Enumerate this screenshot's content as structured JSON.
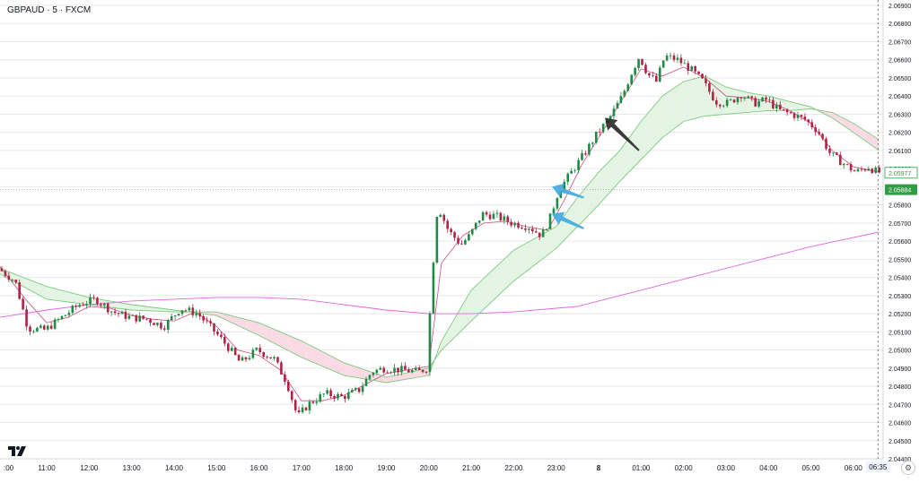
{
  "header": {
    "symbol": "GBPAUD · 5 · FXCM"
  },
  "colors": {
    "grid": "#e6e8ec",
    "up_candle": "#1e8a44",
    "down_candle": "#b22245",
    "fill_bull": "#e3f4e3",
    "fill_bear": "#f9d9e4",
    "band_line": "#7fc97f",
    "slow_ma": "#e066e0",
    "fast_ma": "#cc4f7a",
    "price_tag_bg": "#2e9e46",
    "arrow_dark": "#2b2b2b",
    "arrow_blue": "#40a9de"
  },
  "icons": {
    "logo": "tradingview-logo-icon",
    "settings": "gear-icon"
  },
  "chart_data": {
    "type": "candlestick",
    "symbol": "GBPAUD",
    "timeframe": "5",
    "source": "FXCM",
    "ylim": [
      2.044,
      2.069
    ],
    "y_ticks": [
      "2.06900",
      "2.06800",
      "2.06700",
      "2.06600",
      "2.06500",
      "2.06400",
      "2.06300",
      "2.06200",
      "2.06100",
      "2.06000",
      "2.05900",
      "2.05800",
      "2.05700",
      "2.05600",
      "2.05500",
      "2.05400",
      "2.05300",
      "2.05200",
      "2.05100",
      "2.05000",
      "2.04900",
      "2.04800",
      "2.04700",
      "2.04600",
      "2.04500",
      "2.04400"
    ],
    "x_ticks": [
      {
        "t": 10.0,
        "label": ":00"
      },
      {
        "t": 11.0,
        "label": "11:00"
      },
      {
        "t": 12.0,
        "label": "12:00"
      },
      {
        "t": 13.0,
        "label": "13:00"
      },
      {
        "t": 14.0,
        "label": "14:00"
      },
      {
        "t": 15.0,
        "label": "15:00"
      },
      {
        "t": 16.0,
        "label": "16:00"
      },
      {
        "t": 17.0,
        "label": "17:00"
      },
      {
        "t": 18.0,
        "label": "18:00"
      },
      {
        "t": 19.0,
        "label": "19:00"
      },
      {
        "t": 20.0,
        "label": "20:00"
      },
      {
        "t": 21.0,
        "label": "21:00"
      },
      {
        "t": 22.0,
        "label": "22:00"
      },
      {
        "t": 23.0,
        "label": "23:00"
      },
      {
        "t": 24.0,
        "label": "8"
      },
      {
        "t": 25.0,
        "label": "01:00"
      },
      {
        "t": 26.0,
        "label": "02:00"
      },
      {
        "t": 27.0,
        "label": "03:00"
      },
      {
        "t": 28.0,
        "label": "04:00"
      },
      {
        "t": 29.0,
        "label": "05:00"
      },
      {
        "t": 30.0,
        "label": "06:00"
      }
    ],
    "crosshair": {
      "t": 30.58,
      "label": "06:35"
    },
    "current_price": {
      "value": 2.05977,
      "label": "2.05977"
    },
    "marked_price": {
      "value": 2.05884,
      "label": "2.05884"
    },
    "close_path": [
      [
        9.9,
        2.0545
      ],
      [
        10.3,
        2.0538
      ],
      [
        10.6,
        2.0512
      ],
      [
        11.0,
        2.0511
      ],
      [
        11.4,
        2.0518
      ],
      [
        11.8,
        2.0525
      ],
      [
        12.2,
        2.0528
      ],
      [
        12.6,
        2.0521
      ],
      [
        13.0,
        2.0518
      ],
      [
        13.4,
        2.0517
      ],
      [
        13.8,
        2.0513
      ],
      [
        14.2,
        2.0523
      ],
      [
        14.6,
        2.052
      ],
      [
        15.0,
        2.051
      ],
      [
        15.3,
        2.0502
      ],
      [
        15.6,
        2.0493
      ],
      [
        16.0,
        2.05
      ],
      [
        16.4,
        2.0495
      ],
      [
        16.7,
        2.0482
      ],
      [
        16.95,
        2.0463
      ],
      [
        17.2,
        2.047
      ],
      [
        17.6,
        2.0476
      ],
      [
        18.0,
        2.0474
      ],
      [
        18.4,
        2.0478
      ],
      [
        18.7,
        2.0488
      ],
      [
        19.0,
        2.049
      ],
      [
        19.4,
        2.0489
      ],
      [
        19.8,
        2.0488
      ],
      [
        20.0,
        2.049
      ],
      [
        20.1,
        2.0535
      ],
      [
        20.25,
        2.058
      ],
      [
        20.5,
        2.0566
      ],
      [
        20.8,
        2.0558
      ],
      [
        21.0,
        2.0563
      ],
      [
        21.3,
        2.0575
      ],
      [
        21.6,
        2.0574
      ],
      [
        22.0,
        2.057
      ],
      [
        22.4,
        2.0568
      ],
      [
        22.7,
        2.0563
      ],
      [
        22.9,
        2.0573
      ],
      [
        23.1,
        2.0588
      ],
      [
        23.4,
        2.0598
      ],
      [
        23.7,
        2.0608
      ],
      [
        24.0,
        2.0619
      ],
      [
        24.3,
        2.0628
      ],
      [
        24.6,
        2.064
      ],
      [
        24.8,
        2.0652
      ],
      [
        25.0,
        2.0662
      ],
      [
        25.2,
        2.0652
      ],
      [
        25.4,
        2.0648
      ],
      [
        25.6,
        2.0662
      ],
      [
        25.9,
        2.066
      ],
      [
        26.2,
        2.0655
      ],
      [
        26.5,
        2.0648
      ],
      [
        26.8,
        2.0637
      ],
      [
        27.1,
        2.0636
      ],
      [
        27.4,
        2.0641
      ],
      [
        27.7,
        2.0636
      ],
      [
        28.0,
        2.0638
      ],
      [
        28.3,
        2.0632
      ],
      [
        28.6,
        2.063
      ],
      [
        28.9,
        2.0627
      ],
      [
        29.2,
        2.0621
      ],
      [
        29.5,
        2.0608
      ],
      [
        29.8,
        2.0603
      ],
      [
        30.1,
        2.0598
      ],
      [
        30.4,
        2.0601
      ],
      [
        30.6,
        2.0598
      ]
    ],
    "series": [
      {
        "name": "",
        "role": "fast",
        "color": "#cc4f7a",
        "points": [
          [
            9.9,
            2.0546
          ],
          [
            10.5,
            2.0528
          ],
          [
            11.0,
            2.0515
          ],
          [
            11.5,
            2.0518
          ],
          [
            12.0,
            2.0524
          ],
          [
            12.5,
            2.0523
          ],
          [
            13.0,
            2.0519
          ],
          [
            13.5,
            2.0517
          ],
          [
            14.0,
            2.0516
          ],
          [
            14.5,
            2.0521
          ],
          [
            15.0,
            2.0513
          ],
          [
            15.5,
            2.05
          ],
          [
            16.0,
            2.0497
          ],
          [
            16.5,
            2.0489
          ],
          [
            17.0,
            2.0472
          ],
          [
            17.5,
            2.0472
          ],
          [
            18.0,
            2.0475
          ],
          [
            18.5,
            2.0481
          ],
          [
            19.0,
            2.0487
          ],
          [
            19.5,
            2.0489
          ],
          [
            20.0,
            2.0491
          ],
          [
            20.3,
            2.0548
          ],
          [
            20.8,
            2.0563
          ],
          [
            21.3,
            2.057
          ],
          [
            21.8,
            2.0571
          ],
          [
            22.3,
            2.0568
          ],
          [
            22.8,
            2.0566
          ],
          [
            23.2,
            2.0583
          ],
          [
            23.6,
            2.0602
          ],
          [
            24.0,
            2.0617
          ],
          [
            24.5,
            2.0636
          ],
          [
            25.0,
            2.0655
          ],
          [
            25.5,
            2.0651
          ],
          [
            26.0,
            2.0656
          ],
          [
            26.5,
            2.065
          ],
          [
            27.0,
            2.064
          ],
          [
            27.5,
            2.0639
          ],
          [
            28.0,
            2.0637
          ],
          [
            28.5,
            2.0632
          ],
          [
            29.0,
            2.0625
          ],
          [
            29.5,
            2.061
          ],
          [
            30.0,
            2.0601
          ],
          [
            30.6,
            2.0598
          ]
        ]
      },
      {
        "name": "",
        "role": "band_a",
        "color": "#7fc97f",
        "points": [
          [
            9.9,
            2.0545
          ],
          [
            11.0,
            2.0535
          ],
          [
            12.0,
            2.0529
          ],
          [
            13.0,
            2.0525
          ],
          [
            14.0,
            2.0522
          ],
          [
            15.0,
            2.0519
          ],
          [
            16.0,
            2.0508
          ],
          [
            17.0,
            2.0496
          ],
          [
            18.0,
            2.0486
          ],
          [
            19.0,
            2.0482
          ],
          [
            20.0,
            2.0486
          ],
          [
            20.3,
            2.0505
          ],
          [
            21.0,
            2.0533
          ],
          [
            22.0,
            2.0555
          ],
          [
            23.0,
            2.0568
          ],
          [
            23.5,
            2.0584
          ],
          [
            24.0,
            2.0598
          ],
          [
            24.5,
            2.061
          ],
          [
            25.0,
            2.0626
          ],
          [
            25.5,
            2.064
          ],
          [
            26.0,
            2.0648
          ],
          [
            26.5,
            2.0651
          ],
          [
            27.0,
            2.0645
          ],
          [
            27.5,
            2.0642
          ],
          [
            28.0,
            2.064
          ],
          [
            28.5,
            2.0637
          ],
          [
            29.0,
            2.0634
          ],
          [
            29.5,
            2.0628
          ],
          [
            30.0,
            2.062
          ],
          [
            30.6,
            2.061
          ]
        ]
      },
      {
        "name": "",
        "role": "band_b",
        "color": "#7fc97f",
        "points": [
          [
            9.9,
            2.0542
          ],
          [
            11.0,
            2.0528
          ],
          [
            12.0,
            2.0525
          ],
          [
            13.0,
            2.0522
          ],
          [
            14.0,
            2.0521
          ],
          [
            15.0,
            2.0521
          ],
          [
            16.0,
            2.0515
          ],
          [
            17.0,
            2.0505
          ],
          [
            18.0,
            2.0493
          ],
          [
            19.0,
            2.0485
          ],
          [
            20.0,
            2.049
          ],
          [
            20.3,
            2.05
          ],
          [
            21.0,
            2.0516
          ],
          [
            22.0,
            2.0538
          ],
          [
            23.0,
            2.0556
          ],
          [
            23.5,
            2.0568
          ],
          [
            24.0,
            2.058
          ],
          [
            24.5,
            2.0593
          ],
          [
            25.0,
            2.0605
          ],
          [
            25.5,
            2.0617
          ],
          [
            26.0,
            2.0626
          ],
          [
            26.5,
            2.0629
          ],
          [
            27.0,
            2.063
          ],
          [
            27.5,
            2.0631
          ],
          [
            28.0,
            2.0632
          ],
          [
            28.5,
            2.0632
          ],
          [
            29.0,
            2.0633
          ],
          [
            29.5,
            2.0631
          ],
          [
            30.0,
            2.0625
          ],
          [
            30.6,
            2.0616
          ]
        ]
      },
      {
        "name": "",
        "role": "slow",
        "color": "#e066e0",
        "points": [
          [
            9.9,
            2.0518
          ],
          [
            11.0,
            2.0522
          ],
          [
            12.0,
            2.0525
          ],
          [
            13.0,
            2.0527
          ],
          [
            14.0,
            2.0528
          ],
          [
            15.0,
            2.0529
          ],
          [
            16.0,
            2.0529
          ],
          [
            17.0,
            2.0528
          ],
          [
            18.0,
            2.0525
          ],
          [
            19.0,
            2.0522
          ],
          [
            20.0,
            2.052
          ],
          [
            21.0,
            2.052
          ],
          [
            22.0,
            2.0521
          ],
          [
            23.0,
            2.0523
          ],
          [
            23.5,
            2.0524
          ],
          [
            24.0,
            2.0527
          ],
          [
            25.0,
            2.0533
          ],
          [
            26.0,
            2.0539
          ],
          [
            27.0,
            2.0545
          ],
          [
            28.0,
            2.0551
          ],
          [
            29.0,
            2.0557
          ],
          [
            30.0,
            2.0562
          ],
          [
            30.6,
            2.0565
          ]
        ]
      }
    ],
    "annotations": [
      {
        "type": "arrow",
        "name": "dark-arrow",
        "color": "#2b2b2b",
        "tip": [
          24.15,
          2.0628
        ],
        "tail": [
          24.95,
          2.061
        ]
      },
      {
        "type": "arrow",
        "name": "blue-arrow-upper",
        "color": "#40a9de",
        "tip": [
          22.9,
          2.059
        ],
        "tail": [
          23.65,
          2.0584
        ]
      },
      {
        "type": "arrow",
        "name": "blue-arrow-lower",
        "color": "#40a9de",
        "tip": [
          22.9,
          2.0575
        ],
        "tail": [
          23.65,
          2.0567
        ]
      }
    ]
  }
}
